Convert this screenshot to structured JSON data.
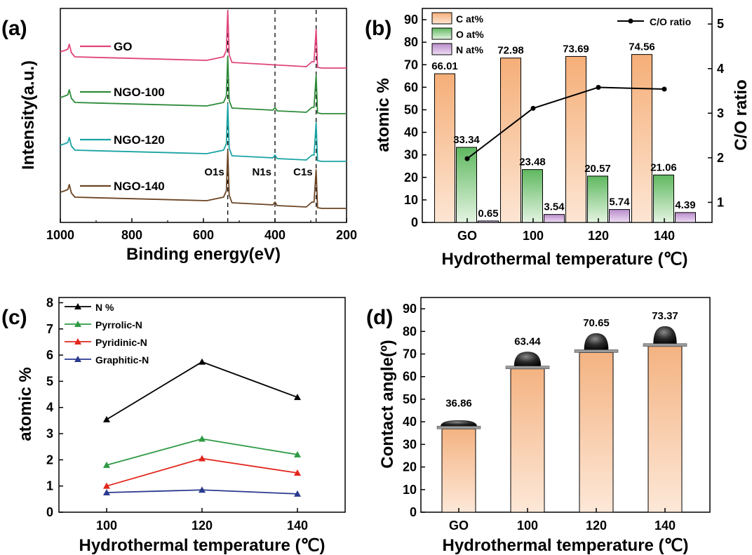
{
  "colors": {
    "go": "#e0447c",
    "ngo100": "#2e8b3a",
    "ngo120": "#1aa3a3",
    "ngo140": "#6b4423",
    "c_bar": "#f5b685",
    "o_bar": "#7cc67c",
    "n_bar": "#c9a2d6",
    "n_total": "#000000",
    "pyrrolic": "#2e9a44",
    "pyridinic": "#e3261c",
    "graphitic": "#2a3a8f",
    "contact_bar": "#f6c09a"
  },
  "chart_data": [
    {
      "panel": "(a)",
      "type": "line",
      "xlabel": "Binding energy(eV)",
      "ylabel": "Intensity(a.u.)",
      "xlim": [
        1000,
        200
      ],
      "x_ticks": [
        "1000",
        "800",
        "600",
        "400",
        "200"
      ],
      "x_reversed": true,
      "series": [
        {
          "name": "GO"
        },
        {
          "name": "NGO-100"
        },
        {
          "name": "NGO-120"
        },
        {
          "name": "NGO-140"
        }
      ],
      "reference_lines": [
        {
          "label": "O1s",
          "x": 532
        },
        {
          "label": "N1s",
          "x": 400
        },
        {
          "label": "C1s",
          "x": 285
        }
      ]
    },
    {
      "panel": "(b)",
      "type": "bar",
      "xlabel": "Hydrothermal temperature (℃)",
      "ylabel": "atomic %",
      "y2label": "C/O ratio",
      "ylim": [
        0,
        95
      ],
      "y_ticks": [
        "0",
        "10",
        "20",
        "30",
        "40",
        "50",
        "60",
        "70",
        "80",
        "90"
      ],
      "y2lim": [
        0.55,
        5.35
      ],
      "y2_ticks": [
        "1",
        "2",
        "3",
        "4",
        "5"
      ],
      "categories": [
        "GO",
        "100",
        "120",
        "140"
      ],
      "series": [
        {
          "name": "C at%",
          "values": [
            66.01,
            72.98,
            73.69,
            74.56
          ],
          "labels": [
            "66.01",
            "72.98",
            "73.69",
            "74.56"
          ]
        },
        {
          "name": "O at%",
          "values": [
            33.34,
            23.48,
            20.57,
            21.06
          ],
          "labels": [
            "33.34",
            "23.48",
            "20.57",
            "21.06"
          ]
        },
        {
          "name": "N at%",
          "values": [
            0.65,
            3.54,
            5.74,
            4.39
          ],
          "labels": [
            "0.65",
            "3.54",
            "5.74",
            "4.39"
          ]
        }
      ],
      "line_series": {
        "name": "C/O ratio",
        "axis": "right",
        "values": [
          1.98,
          3.11,
          3.58,
          3.54
        ]
      },
      "legend": "top"
    },
    {
      "panel": "(c)",
      "type": "line",
      "xlabel": "Hydrothermal temperature (℃)",
      "ylabel": "atomic %",
      "xlim": [
        90,
        150
      ],
      "ylim": [
        0,
        8.2
      ],
      "x_ticks": [
        "100",
        "120",
        "140"
      ],
      "y_ticks": [
        "0",
        "1",
        "2",
        "3",
        "4",
        "5",
        "6",
        "7",
        "8"
      ],
      "x": [
        100,
        120,
        140
      ],
      "series": [
        {
          "name": "N %",
          "values": [
            3.54,
            5.74,
            4.39
          ]
        },
        {
          "name": "Pyrrolic-N",
          "values": [
            1.8,
            2.8,
            2.2
          ]
        },
        {
          "name": "Pyridinic-N",
          "values": [
            1.0,
            2.05,
            1.5
          ]
        },
        {
          "name": "Graphitic-N",
          "values": [
            0.75,
            0.85,
            0.7
          ]
        }
      ],
      "legend": "top-left"
    },
    {
      "panel": "(d)",
      "type": "bar",
      "xlabel": "Hydrothermal temperature (℃)",
      "ylabel": "Contact angle(º)",
      "ylim": [
        0,
        95
      ],
      "y_ticks": [
        "0",
        "10",
        "20",
        "30",
        "40",
        "50",
        "60",
        "70",
        "80",
        "90"
      ],
      "categories": [
        "GO",
        "100",
        "120",
        "140"
      ],
      "values": [
        36.86,
        63.44,
        70.65,
        73.37
      ],
      "labels": [
        "36.86",
        "63.44",
        "70.65",
        "73.37"
      ]
    }
  ]
}
